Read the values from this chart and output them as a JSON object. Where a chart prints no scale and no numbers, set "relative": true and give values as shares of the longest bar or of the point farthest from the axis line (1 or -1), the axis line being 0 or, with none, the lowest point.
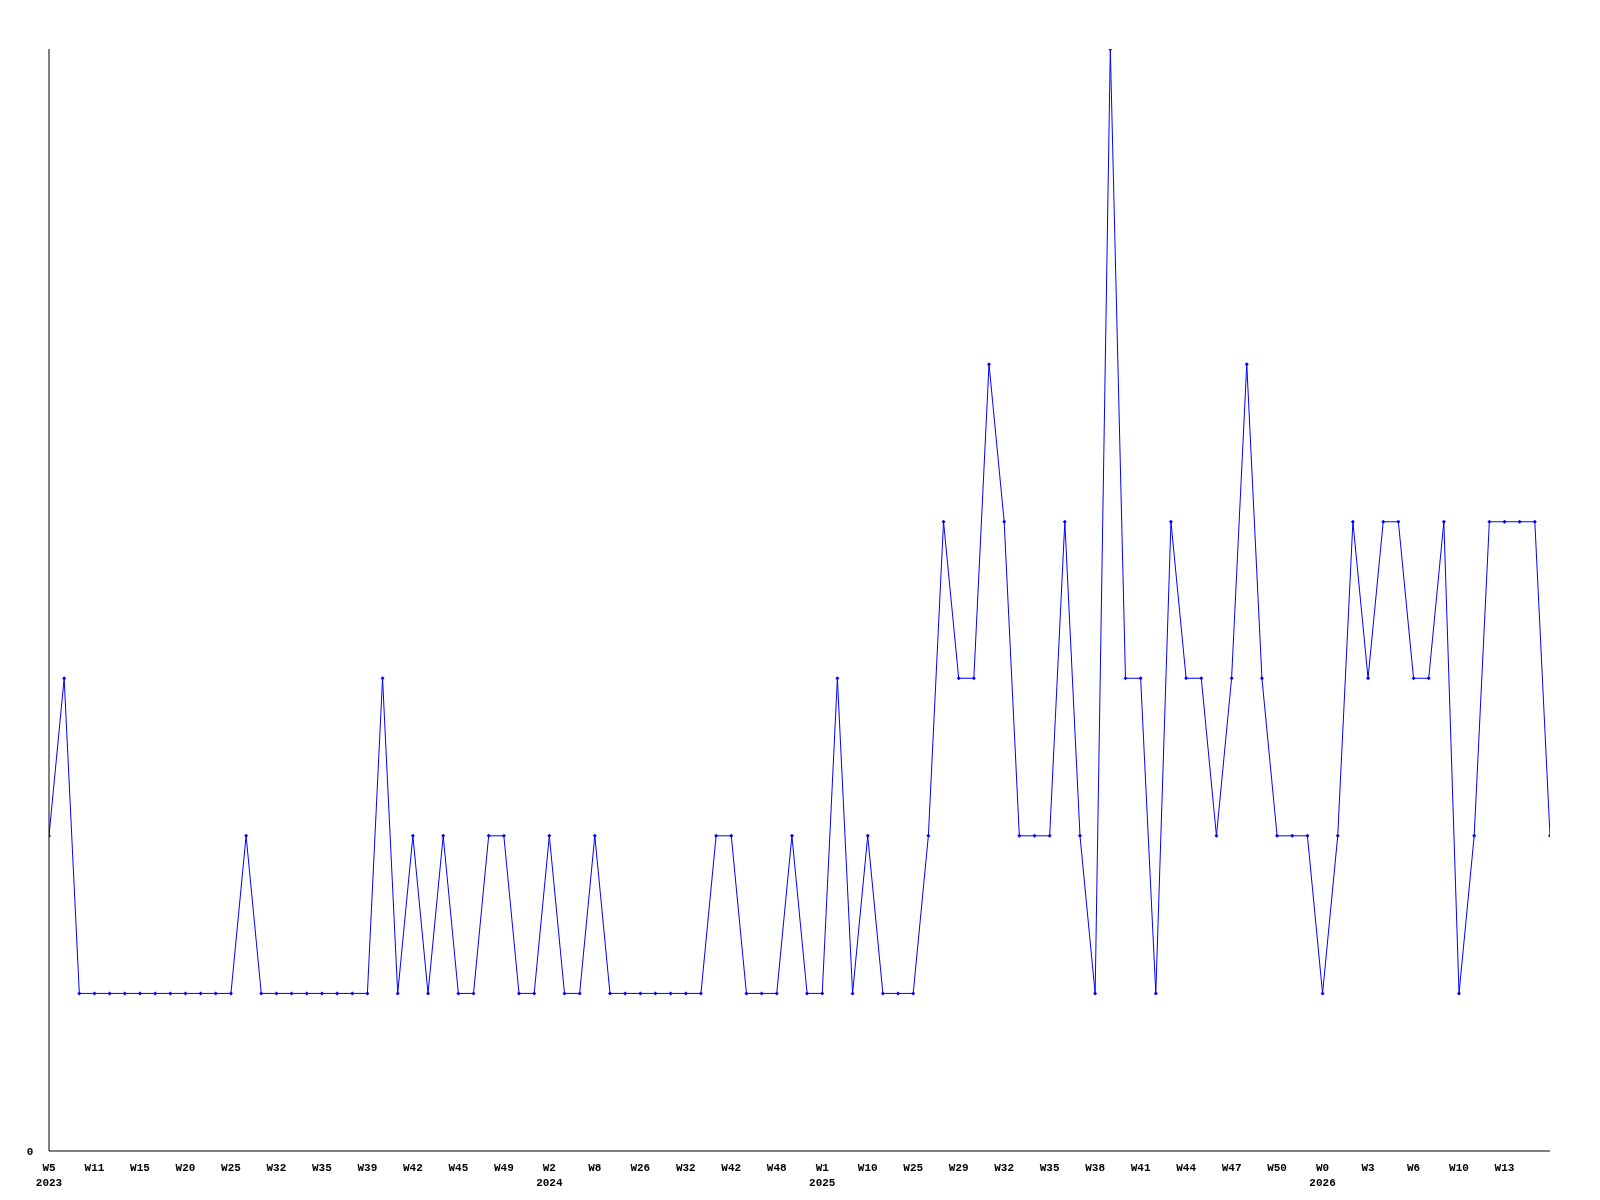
{
  "chart_data": {
    "type": "line",
    "relative": true,
    "annotations": [
      "0"
    ],
    "marker": "diamond",
    "line_style": "solid",
    "categories": [
      "W5\n2023",
      null,
      null,
      "W11",
      null,
      null,
      "W15",
      null,
      null,
      "W20",
      null,
      null,
      "W25",
      null,
      null,
      "W32",
      null,
      null,
      "W35",
      null,
      null,
      "W39",
      null,
      null,
      "W42",
      null,
      null,
      "W45",
      null,
      null,
      "W49",
      null,
      null,
      "W2\n2024",
      null,
      null,
      "W8",
      null,
      null,
      "W26",
      null,
      null,
      "W32",
      null,
      null,
      "W42",
      null,
      null,
      "W48",
      null,
      null,
      "W1\n2025",
      null,
      null,
      "W10",
      null,
      null,
      "W25",
      null,
      null,
      "W29",
      null,
      null,
      "W32",
      null,
      null,
      "W35",
      null,
      null,
      "W38",
      null,
      null,
      "W41",
      null,
      null,
      "W44",
      null,
      null,
      "W47",
      null,
      null,
      "W50",
      null,
      null,
      "W0\n2026",
      null,
      null,
      "W3",
      null,
      null,
      "W6",
      null,
      null,
      "W10",
      null,
      null,
      "W13",
      null,
      null,
      null
    ],
    "series": [
      {
        "color": "#0000ff",
        "values": [
          0.286,
          0.429,
          0.143,
          0.143,
          0.143,
          0.143,
          0.143,
          0.143,
          0.143,
          0.143,
          0.143,
          0.143,
          0.143,
          0.286,
          0.143,
          0.143,
          0.143,
          0.143,
          0.143,
          0.143,
          0.143,
          0.143,
          0.429,
          0.143,
          0.286,
          0.143,
          0.286,
          0.143,
          0.143,
          0.286,
          0.286,
          0.143,
          0.143,
          0.286,
          0.143,
          0.143,
          0.286,
          0.143,
          0.143,
          0.143,
          0.143,
          0.143,
          0.143,
          0.143,
          0.286,
          0.286,
          0.143,
          0.143,
          0.143,
          0.286,
          0.143,
          0.143,
          0.429,
          0.143,
          0.286,
          0.143,
          0.143,
          0.143,
          0.286,
          0.571,
          0.429,
          0.429,
          0.714,
          0.571,
          0.286,
          0.286,
          0.286,
          0.571,
          0.286,
          0.143,
          1,
          0.429,
          0.429,
          0.143,
          0.571,
          0.429,
          0.429,
          0.286,
          0.429,
          0.714,
          0.429,
          0.286,
          0.286,
          0.286,
          0.143,
          0.286,
          0.571,
          0.429,
          0.571,
          0.571,
          0.429,
          0.429,
          0.571,
          0.143,
          0.286,
          0.571,
          0.571,
          0.571,
          0.571,
          0.286
        ]
      }
    ]
  }
}
